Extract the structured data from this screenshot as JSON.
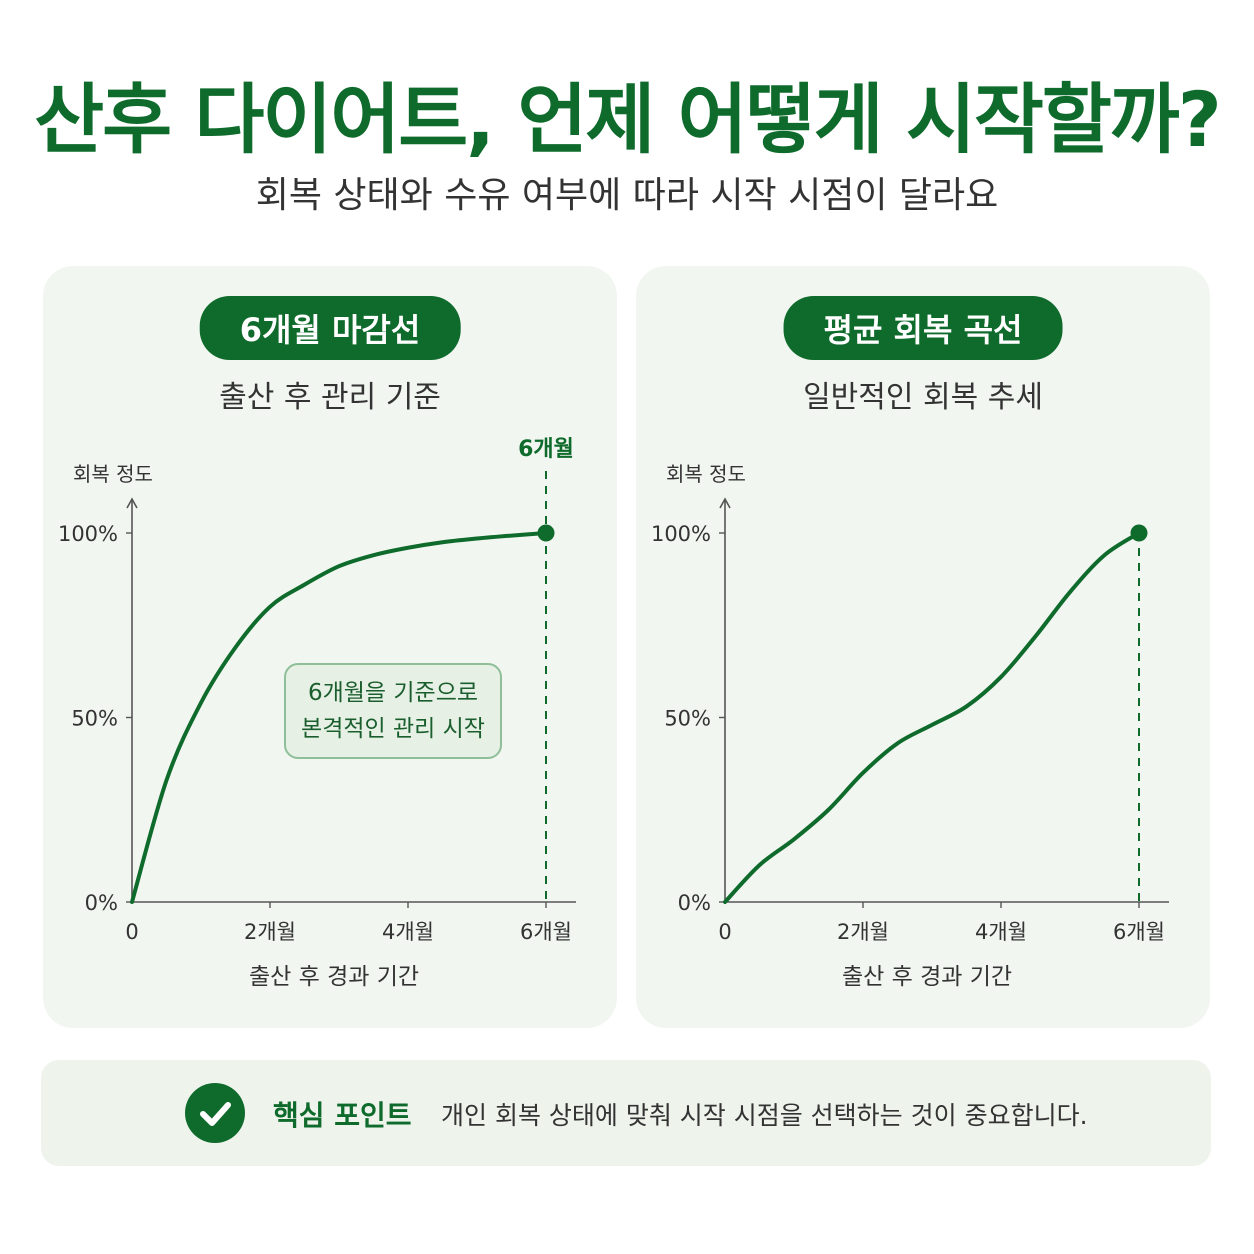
{
  "header": {
    "title": "산후 다이어트, 언제 어떻게 시작할까?",
    "subtitle": "회복 상태와 수유 여부에 따라 시작 시점이 달라요"
  },
  "colors": {
    "accent": "#0f6b2c",
    "panel_bg": "#f2f6f1",
    "axis": "#555555"
  },
  "panels": [
    {
      "pill": "6개월 마감선",
      "subtitle": "출산 후 관리 기준",
      "callout": [
        "6개월을 기준으로",
        "본격적인 관리 시작"
      ],
      "marker_label": "6개월"
    },
    {
      "pill": "평균 회복 곡선",
      "subtitle": "일반적인 회복 추세"
    }
  ],
  "chart_data": [
    {
      "type": "line",
      "title": "6개월 마감선",
      "xlabel": "출산 후 경과 기간",
      "ylabel": "회복 정도",
      "x_ticks": [
        "0",
        "2개월",
        "4개월",
        "6개월"
      ],
      "y_ticks": [
        "0%",
        "50%",
        "100%"
      ],
      "xlim": [
        0,
        6
      ],
      "ylim": [
        0,
        100
      ],
      "series": [
        {
          "x": [
            0,
            0.5,
            1,
            1.5,
            2,
            2.5,
            3,
            3.5,
            4,
            4.5,
            5,
            5.5,
            6
          ],
          "y": [
            0,
            33,
            54,
            69,
            80,
            86,
            91,
            94,
            96,
            97.5,
            98.5,
            99.3,
            100
          ]
        }
      ],
      "vline_x": 6,
      "endpoint": [
        6,
        100
      ]
    },
    {
      "type": "line",
      "title": "평균 회복 곡선",
      "xlabel": "출산 후 경과 기간",
      "ylabel": "회복 정도",
      "x_ticks": [
        "0",
        "2개월",
        "4개월",
        "6개월"
      ],
      "y_ticks": [
        "0%",
        "50%",
        "100%"
      ],
      "xlim": [
        0,
        6
      ],
      "ylim": [
        0,
        100
      ],
      "series": [
        {
          "x": [
            0,
            0.5,
            1,
            1.5,
            2,
            2.5,
            3,
            3.5,
            4,
            4.5,
            5,
            5.5,
            6
          ],
          "y": [
            0,
            10,
            17,
            25,
            35,
            43,
            48,
            53,
            61,
            72,
            84,
            94,
            100
          ]
        }
      ],
      "vline_x": 6,
      "endpoint": [
        6,
        100
      ]
    }
  ],
  "footer": {
    "label": "핵심 포인트",
    "text": "개인 회복 상태에 맞춰 시작 시점을 선택하는 것이 중요합니다.",
    "icon": "check-circle-icon"
  }
}
